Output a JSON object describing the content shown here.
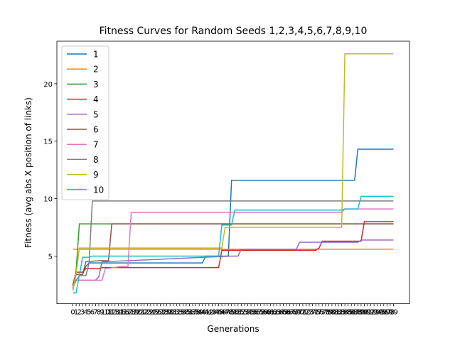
{
  "chart_data": {
    "type": "line",
    "title": "Fitness Curves for Random Seeds 1,2,3,4,5,6,7,8,9,10",
    "xlabel": "Generations",
    "ylabel": "Fitness (avg abs X position of links)",
    "xlim": [
      -4.95,
      103.95
    ],
    "ylim": [
      0.85,
      23.7
    ],
    "yticks": [
      5,
      10,
      15,
      20
    ],
    "xtick_count": 100,
    "legend_position": "upper-left",
    "grid": false,
    "series": [
      {
        "name": "1",
        "color": "#1f77b4",
        "points": [
          [
            0,
            2.2
          ],
          [
            1,
            3.4
          ],
          [
            3,
            3.4
          ],
          [
            4,
            4.1
          ],
          [
            5,
            4.4
          ],
          [
            40,
            4.4
          ],
          [
            41,
            5.0
          ],
          [
            48,
            5.0
          ],
          [
            49,
            11.6
          ],
          [
            87,
            11.6
          ],
          [
            88,
            14.3
          ],
          [
            99,
            14.3
          ]
        ]
      },
      {
        "name": "2",
        "color": "#ff7f0e",
        "points": [
          [
            0,
            5.6
          ],
          [
            99,
            5.6
          ]
        ]
      },
      {
        "name": "3",
        "color": "#2ca02c",
        "points": [
          [
            0,
            2.0
          ],
          [
            1,
            3.8
          ],
          [
            2,
            7.8
          ],
          [
            99,
            7.8
          ]
        ]
      },
      {
        "name": "4",
        "color": "#d62728",
        "points": [
          [
            0,
            2.5
          ],
          [
            1,
            3.6
          ],
          [
            3,
            3.6
          ],
          [
            4,
            3.9
          ],
          [
            8,
            3.9
          ],
          [
            9,
            4.0
          ],
          [
            45,
            4.0
          ],
          [
            46,
            5.5
          ],
          [
            75,
            5.5
          ],
          [
            76,
            5.7
          ],
          [
            77,
            6.3
          ],
          [
            89,
            6.3
          ],
          [
            90,
            8.0
          ],
          [
            99,
            8.0
          ]
        ]
      },
      {
        "name": "5",
        "color": "#9467bd",
        "points": [
          [
            0,
            2.9
          ],
          [
            7,
            2.9
          ],
          [
            8,
            3.2
          ],
          [
            9,
            4.5
          ],
          [
            49,
            5.0
          ],
          [
            51,
            5.0
          ],
          [
            52,
            5.6
          ],
          [
            69,
            5.6
          ],
          [
            70,
            6.2
          ],
          [
            88,
            6.2
          ],
          [
            89,
            6.4
          ],
          [
            99,
            6.4
          ]
        ]
      },
      {
        "name": "6",
        "color": "#8c564b",
        "points": [
          [
            0,
            2.4
          ],
          [
            1,
            3.4
          ],
          [
            3,
            3.4
          ],
          [
            4,
            4.5
          ],
          [
            8,
            4.6
          ],
          [
            11,
            4.6
          ],
          [
            12,
            7.8
          ],
          [
            99,
            7.8
          ]
        ]
      },
      {
        "name": "7",
        "color": "#e377c2",
        "points": [
          [
            0,
            2.9
          ],
          [
            9,
            2.9
          ],
          [
            10,
            3.9
          ],
          [
            15,
            4.1
          ],
          [
            17,
            4.1
          ],
          [
            18,
            8.8
          ],
          [
            83,
            8.8
          ],
          [
            84,
            9.1
          ],
          [
            99,
            9.1
          ]
        ]
      },
      {
        "name": "8",
        "color": "#7f7f7f",
        "points": [
          [
            0,
            2.2
          ],
          [
            1,
            2.9
          ],
          [
            2,
            3.3
          ],
          [
            4,
            3.3
          ],
          [
            5,
            4.4
          ],
          [
            6,
            9.8
          ],
          [
            99,
            9.8
          ]
        ]
      },
      {
        "name": "9",
        "color": "#bcbd22",
        "points": [
          [
            0,
            2.0
          ],
          [
            1,
            3.5
          ],
          [
            2,
            5.7
          ],
          [
            46,
            5.7
          ],
          [
            47,
            7.5
          ],
          [
            83,
            7.5
          ],
          [
            84,
            22.6
          ],
          [
            99,
            22.6
          ]
        ]
      },
      {
        "name": "10",
        "color": "#17becf",
        "points": [
          [
            0,
            1.8
          ],
          [
            1,
            1.8
          ],
          [
            3,
            4.9
          ],
          [
            5,
            4.9
          ],
          [
            6,
            5.0
          ],
          [
            45,
            5.0
          ],
          [
            46,
            7.7
          ],
          [
            49,
            7.7
          ],
          [
            50,
            9.0
          ],
          [
            83,
            9.0
          ],
          [
            84,
            9.1
          ],
          [
            88,
            9.1
          ],
          [
            89,
            10.2
          ],
          [
            99,
            10.2
          ]
        ]
      }
    ]
  }
}
